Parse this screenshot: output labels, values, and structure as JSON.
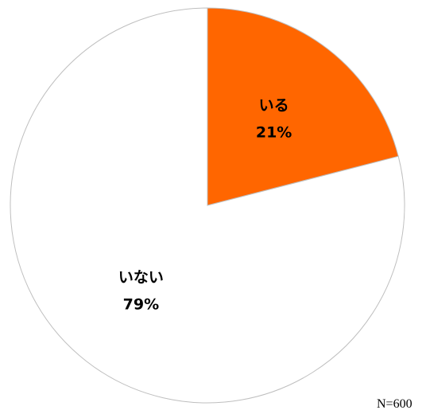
{
  "chart_data": {
    "type": "pie",
    "categories": [
      "いる",
      "いない"
    ],
    "values": [
      21,
      79
    ],
    "value_labels": [
      "21%",
      "79%"
    ],
    "colors": [
      "#ff6600",
      "#ffffff"
    ],
    "note": "N=600"
  }
}
